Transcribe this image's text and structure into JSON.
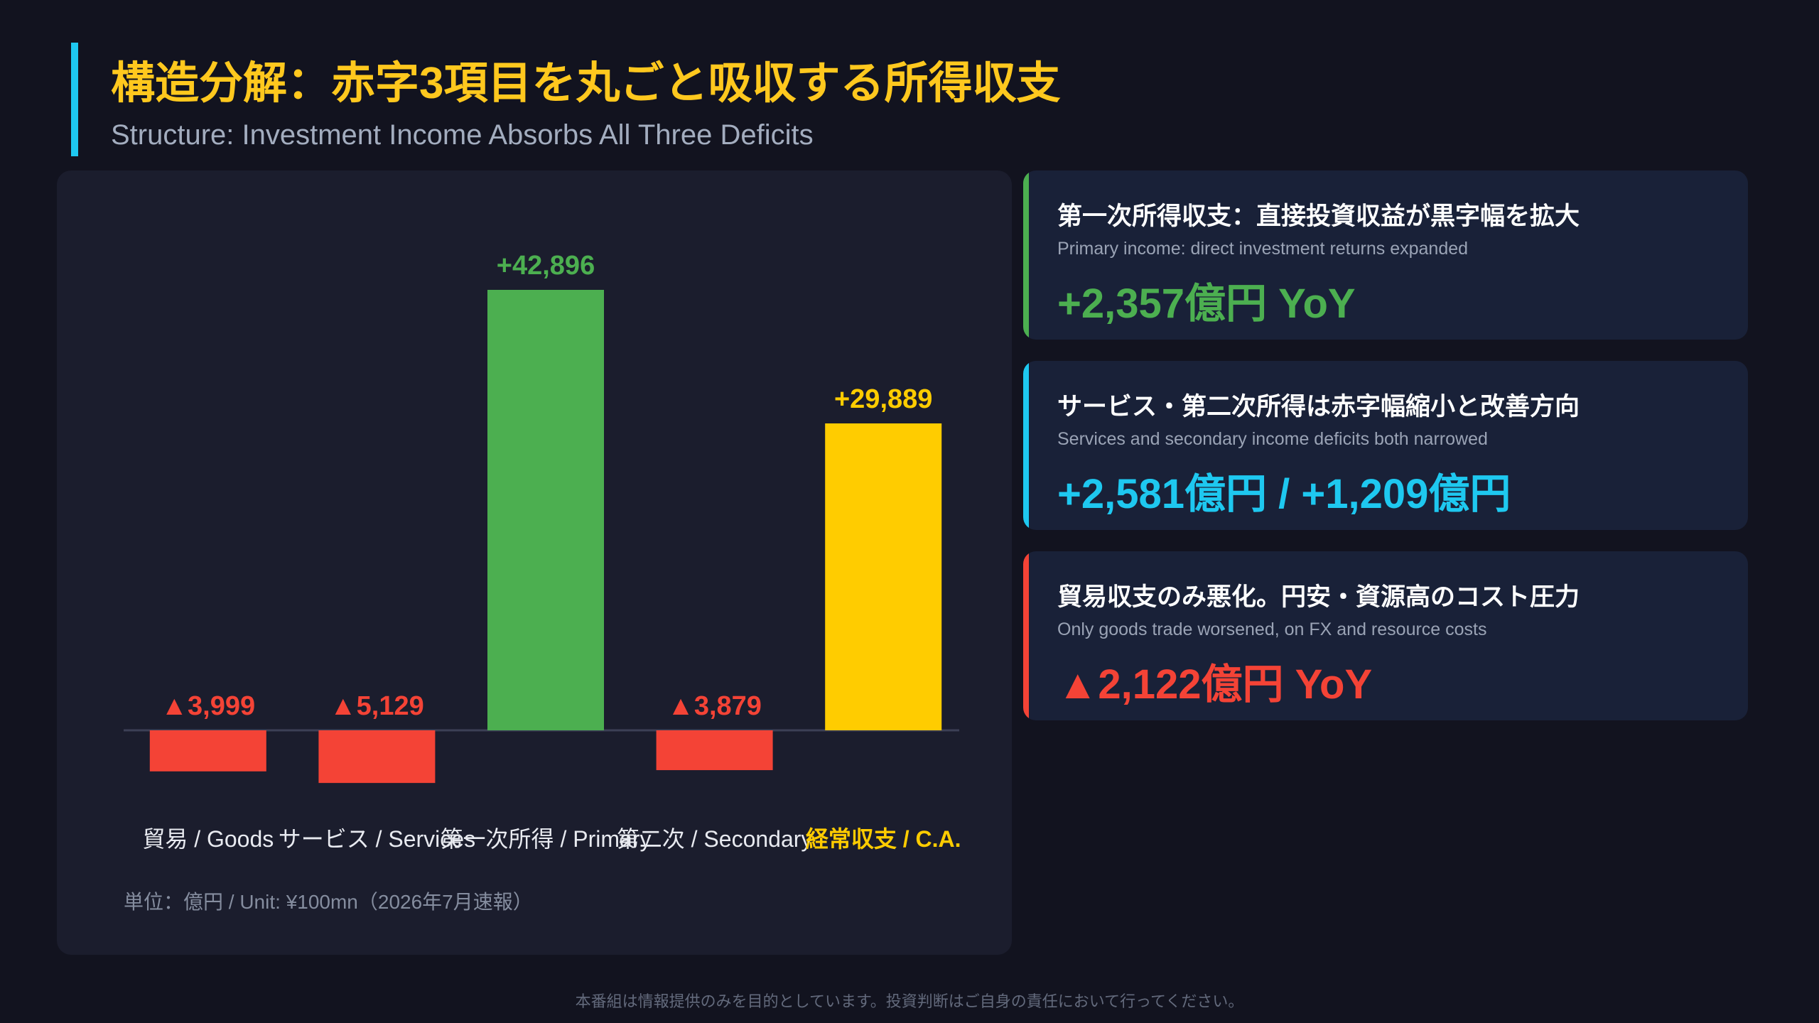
{
  "header": {
    "title": "構造分解：赤字3項目を丸ごと吸収する所得収支",
    "subtitle": "Structure: Investment Income Absorbs All Three Deficits"
  },
  "chart_data": {
    "type": "bar",
    "categories": [
      "貿易 / Goods",
      "サービス / Services",
      "第一次所得 / Primary",
      "第二次 / Secondary",
      "経常収支 / C.A."
    ],
    "values": [
      -3999,
      -5129,
      42896,
      -3879,
      29889
    ],
    "data_labels": [
      "▲3,999",
      "▲5,129",
      "+42,896",
      "▲3,879",
      "+29,889"
    ],
    "bar_colors": [
      "#f44336",
      "#f44336",
      "#4caf50",
      "#f44336",
      "#ffcc00"
    ],
    "label_colors": [
      "#f44336",
      "#f44336",
      "#4caf50",
      "#f44336",
      "#ffcc00"
    ],
    "category_label_colors": [
      "#e8eaf0",
      "#e8eaf0",
      "#e8eaf0",
      "#e8eaf0",
      "#ffcc00"
    ],
    "ylim": [
      -6000,
      45000
    ],
    "grid": false,
    "unit_note": "単位：億円 / Unit: ¥100mn（2026年7月速報）"
  },
  "cards": [
    {
      "title": "第一次所得収支：直接投資収益が黒字幅を拡大",
      "subtitle": "Primary income: direct investment returns expanded",
      "value": "+2,357億円 YoY",
      "color": "#4caf50"
    },
    {
      "title": "サービス・第二次所得は赤字幅縮小と改善方向",
      "subtitle": "Services and secondary income deficits both narrowed",
      "value": "+2,581億円 / +1,209億円",
      "color": "#1ec8f0"
    },
    {
      "title": "貿易収支のみ悪化。円安・資源高のコスト圧力",
      "subtitle": "Only goods trade worsened, on FX and resource costs",
      "value": "▲2,122億円 YoY",
      "color": "#f44336"
    }
  ],
  "colors": {
    "title": "#ffc81e",
    "accent": "#1ec8f0",
    "background": "#12131f",
    "panel": "#1b1d2d",
    "card": "#192138"
  },
  "footer": "本番組は情報提供のみを目的としています。投資判断はご自身の責任において行ってください。"
}
